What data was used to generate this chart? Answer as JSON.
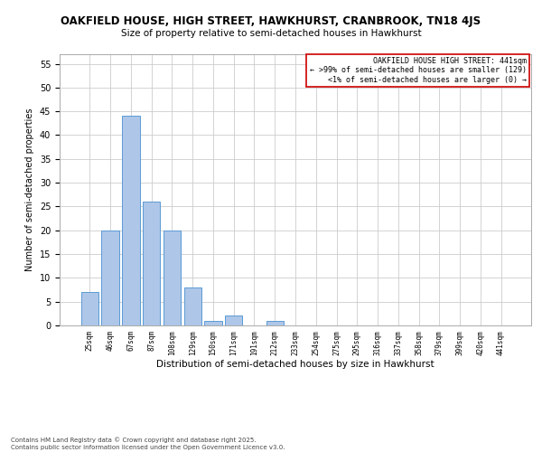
{
  "title": "OAKFIELD HOUSE, HIGH STREET, HAWKHURST, CRANBROOK, TN18 4JS",
  "subtitle": "Size of property relative to semi-detached houses in Hawkhurst",
  "xlabel": "Distribution of semi-detached houses by size in Hawkhurst",
  "ylabel": "Number of semi-detached properties",
  "bar_labels": [
    "25sqm",
    "46sqm",
    "67sqm",
    "87sqm",
    "108sqm",
    "129sqm",
    "150sqm",
    "171sqm",
    "191sqm",
    "212sqm",
    "233sqm",
    "254sqm",
    "275sqm",
    "295sqm",
    "316sqm",
    "337sqm",
    "358sqm",
    "379sqm",
    "399sqm",
    "420sqm",
    "441sqm"
  ],
  "bar_values": [
    7,
    20,
    44,
    26,
    20,
    8,
    1,
    2,
    0,
    1,
    0,
    0,
    0,
    0,
    0,
    0,
    0,
    0,
    0,
    0,
    0
  ],
  "bar_color": "#aec6e8",
  "bar_edge_color": "#5b9bd5",
  "ylim": [
    0,
    57
  ],
  "yticks": [
    0,
    5,
    10,
    15,
    20,
    25,
    30,
    35,
    40,
    45,
    50,
    55
  ],
  "legend_title": "OAKFIELD HOUSE HIGH STREET: 441sqm",
  "legend_line1": "← >99% of semi-detached houses are smaller (129)",
  "legend_line2": "<1% of semi-detached houses are larger (0) →",
  "legend_border_color": "#cc0000",
  "footnote1": "Contains HM Land Registry data © Crown copyright and database right 2025.",
  "footnote2": "Contains public sector information licensed under the Open Government Licence v3.0.",
  "title_fontsize": 8.5,
  "subtitle_fontsize": 7.5,
  "xlabel_fontsize": 7.5,
  "ylabel_fontsize": 7.0,
  "tick_fontsize": 7.0,
  "xtick_fontsize": 5.5,
  "footnote_fontsize": 5.0,
  "legend_fontsize": 6.0
}
